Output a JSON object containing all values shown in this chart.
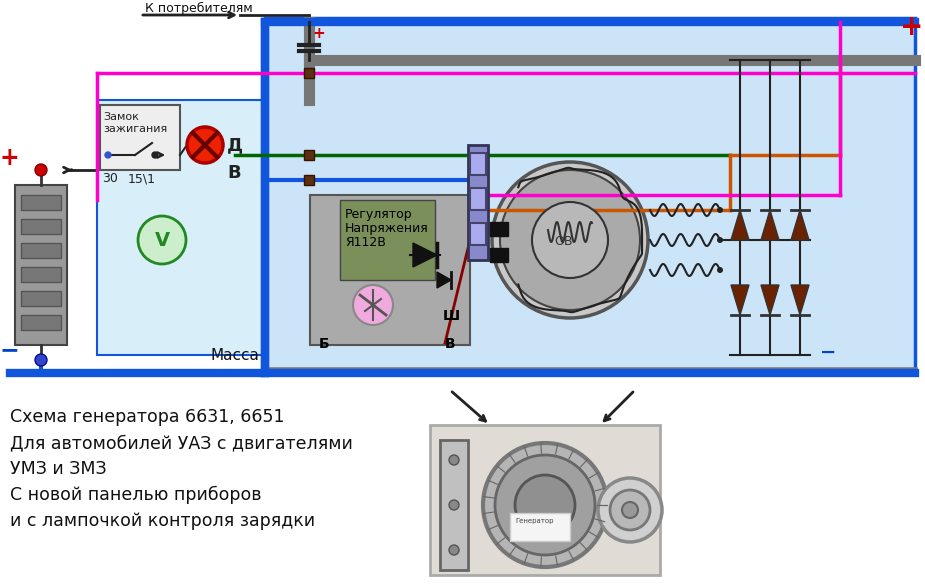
{
  "bg_color": "#ffffff",
  "diagram_bg": "#cce4f7",
  "panel_bg": "#d8eef8",
  "blue_wire": "#1155dd",
  "red_wire": "#cc0000",
  "green_wire": "#006600",
  "orange_wire": "#cc5500",
  "pink_wire": "#ff00cc",
  "dark_wire": "#222222",
  "gray_wire": "#555555",
  "dark_red_wire": "#880000",
  "reg_bg": "#7a8f5a",
  "reg_sub_bg": "#8a9f6a",
  "conn_bg": "#8888bb",
  "bat_body": "#888888",
  "bat_cell": "#999999",
  "text_color": "#111111",
  "red_label": "#cc0000",
  "blue_label": "#0044cc",
  "text_lines": [
    "Схема генератора 6631, 6651",
    "Для автомобилей УАЗ с двигателями",
    "УМЗ и ЗМЗ",
    "С новой панелью приборов",
    "и с лампочкой контроля зарядки"
  ]
}
